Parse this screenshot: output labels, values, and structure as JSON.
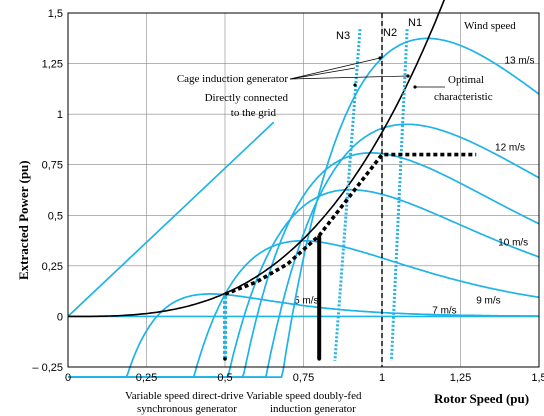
{
  "chart_data": {
    "type": "line",
    "title": "",
    "xlabel": "Rotor Speed (pu)",
    "ylabel": "Extracted Power (pu)",
    "xlim": [
      0,
      1.5
    ],
    "ylim": [
      -0.25,
      1.5
    ],
    "xticks": [
      "0",
      "0,25",
      "0,5",
      "0,75",
      "1",
      "1,25",
      "1,5"
    ],
    "yticks": [
      "– 0,25",
      "0",
      "0,25",
      "0,5",
      "0,75",
      "1",
      "1,25",
      "1,5"
    ],
    "xtick_values": [
      0,
      0.25,
      0.5,
      0.75,
      1.0,
      1.25,
      1.5
    ],
    "ytick_values": [
      -0.25,
      0,
      0.25,
      0.5,
      0.75,
      1.0,
      1.25,
      1.5
    ],
    "grid": true,
    "colors": {
      "wind_curves": "#1fb3e8",
      "optimal": "#000000",
      "vertical_dashed": "#000000"
    },
    "wind_speed_title": "Wind speed",
    "wind_curves": [
      {
        "label": "5 m/s",
        "peak_speed": 0.48,
        "peak_power": 0.11
      },
      {
        "label": "7 m/s",
        "peak_speed": 0.79,
        "peak_power": 0.37
      },
      {
        "label": "9 m/s",
        "peak_speed": 0.95,
        "peak_power": 0.62
      },
      {
        "label": "10 m/s",
        "peak_speed": 1.02,
        "peak_power": 0.8
      },
      {
        "label": "12 m/s",
        "peak_speed": 1.14,
        "peak_power": 0.94
      },
      {
        "label": "13 m/s",
        "peak_speed": 1.21,
        "peak_power": 1.36
      }
    ],
    "optimal_characteristic": {
      "x": [
        0,
        0.25,
        0.5,
        0.75,
        1.0,
        1.2
      ],
      "y": [
        0,
        0.01,
        0.12,
        0.39,
        0.91,
        1.43
      ]
    },
    "vertical_line": {
      "x": 1.0,
      "label": "N2"
    },
    "cage_lines": [
      {
        "label": "N3",
        "x_top": 0.93,
        "x_bottom": 0.85
      },
      {
        "label": "N1",
        "x_top": 1.08,
        "x_bottom": 1.03
      }
    ],
    "direct_drive": {
      "x": 0.5,
      "y_range": [
        -0.21,
        0.11
      ]
    },
    "dfig": {
      "x": 0.8,
      "y_range": [
        -0.21,
        0.4
      ]
    },
    "dfig_path": {
      "x": [
        0.5,
        0.6,
        0.7,
        0.8,
        0.9,
        1.0,
        1.03,
        1.3
      ],
      "y": [
        0.11,
        0.17,
        0.26,
        0.4,
        0.6,
        0.8,
        0.8,
        0.8
      ]
    },
    "annotations": {
      "cage_line1": "Cage induction generator",
      "cage_line2": "Directly connected",
      "cage_line3": "to the grid",
      "optimal_line1": "Optimal",
      "optimal_line2": "characteristic",
      "dd_line1": "Variable speed direct-drive",
      "dd_line2": "synchronous generator",
      "dfig_line1": "Variable speed doubly-fed",
      "dfig_line2": "induction generator"
    }
  }
}
